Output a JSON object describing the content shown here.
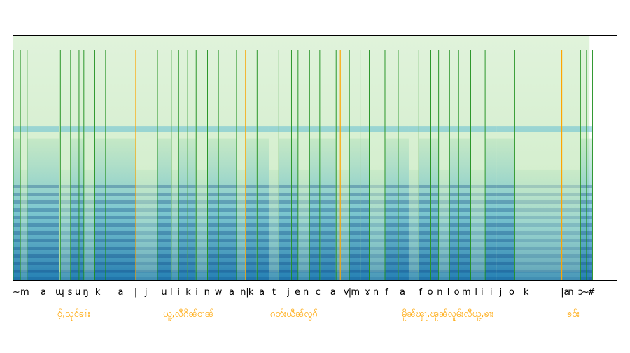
{
  "chart_data": {
    "type": "heatmap",
    "description_kind": "spectrogram-with-phoneme-alignment",
    "colormap": [
      "#f7fcf0",
      "#ccebc5",
      "#7bccc4",
      "#2b8cbe",
      "#084081"
    ],
    "spectrogram_extent_fraction": 0.955,
    "phone_boundary_color": "#008000",
    "word_boundary_color": "#ffa500",
    "word_label_color": "#ffa500",
    "phone_boundaries": [
      0.0,
      0.0117,
      0.023,
      0.076,
      0.078,
      0.095,
      0.109,
      0.117,
      0.135,
      0.153,
      0.203,
      0.239,
      0.25,
      0.262,
      0.274,
      0.289,
      0.303,
      0.322,
      0.34,
      0.37,
      0.385,
      0.404,
      0.424,
      0.44,
      0.461,
      0.472,
      0.491,
      0.508,
      0.535,
      0.557,
      0.575,
      0.59,
      0.616,
      0.638,
      0.656,
      0.672,
      0.692,
      0.705,
      0.723,
      0.738,
      0.758,
      0.782,
      0.8,
      0.831,
      0.94,
      0.95,
      0.96
    ],
    "word_boundaries": [
      0.203,
      0.385,
      0.542,
      0.909
    ],
    "phones": [
      {
        "label": "~",
        "x": 0.005
      },
      {
        "label": "m",
        "x": 0.019
      },
      {
        "label": "a",
        "x": 0.05
      },
      {
        "label": "ɰ",
        "x": 0.077
      },
      {
        "label": "s",
        "x": 0.094
      },
      {
        "label": "u",
        "x": 0.107
      },
      {
        "label": "ŋ",
        "x": 0.12
      },
      {
        "label": "k",
        "x": 0.14
      },
      {
        "label": "a",
        "x": 0.178
      },
      {
        "label": "|",
        "x": 0.203
      },
      {
        "label": "j",
        "x": 0.22
      },
      {
        "label": "u",
        "x": 0.25
      },
      {
        "label": "l",
        "x": 0.262
      },
      {
        "label": "i",
        "x": 0.274
      },
      {
        "label": "k",
        "x": 0.29
      },
      {
        "label": "i",
        "x": 0.304
      },
      {
        "label": "n",
        "x": 0.321
      },
      {
        "label": "w",
        "x": 0.34
      },
      {
        "label": "a",
        "x": 0.362
      },
      {
        "label": "n",
        "x": 0.381
      },
      {
        "label": "|",
        "x": 0.388
      },
      {
        "label": "k",
        "x": 0.394
      },
      {
        "label": "a",
        "x": 0.412
      },
      {
        "label": "t",
        "x": 0.432
      },
      {
        "label": "j",
        "x": 0.456
      },
      {
        "label": "e",
        "x": 0.471
      },
      {
        "label": "n",
        "x": 0.485
      },
      {
        "label": "c",
        "x": 0.505
      },
      {
        "label": "a",
        "x": 0.53
      },
      {
        "label": "v",
        "x": 0.552
      },
      {
        "label": "|",
        "x": 0.558
      },
      {
        "label": "m",
        "x": 0.567
      },
      {
        "label": "ɤ",
        "x": 0.587
      },
      {
        "label": "n",
        "x": 0.601
      },
      {
        "label": "f",
        "x": 0.619
      },
      {
        "label": "a",
        "x": 0.645
      },
      {
        "label": "f",
        "x": 0.675
      },
      {
        "label": "o",
        "x": 0.691
      },
      {
        "label": "n",
        "x": 0.707
      },
      {
        "label": "l",
        "x": 0.721
      },
      {
        "label": "o",
        "x": 0.735
      },
      {
        "label": "m",
        "x": 0.751
      },
      {
        "label": "l",
        "x": 0.767
      },
      {
        "label": "i",
        "x": 0.777
      },
      {
        "label": "i",
        "x": 0.792
      },
      {
        "label": "j",
        "x": 0.808
      },
      {
        "label": "o",
        "x": 0.826
      },
      {
        "label": "k",
        "x": 0.85
      },
      {
        "label": "a",
        "x": 0.917
      },
      {
        "label": "|",
        "x": 0.91
      },
      {
        "label": "n",
        "x": 0.924
      },
      {
        "label": "ɔ",
        "x": 0.94
      },
      {
        "label": "~",
        "x": 0.948
      },
      {
        "label": "#",
        "x": 0.958
      }
    ],
    "words": [
      {
        "label": "ဝ့်,သုင်ခၢ်း",
        "x": 0.1
      },
      {
        "label": "ယူ့,လီဂိၼ်ဝၢၼ်",
        "x": 0.29
      },
      {
        "label": "ဂတ်းယဵၼ်လွၵ်",
        "x": 0.465
      },
      {
        "label": "မိူၼ်ၾႃ,ၽူၼ်လူမ်းလီယူ့,ၶၢး",
        "x": 0.72
      },
      {
        "label": "ၶဝ်း",
        "x": 0.928
      }
    ]
  }
}
